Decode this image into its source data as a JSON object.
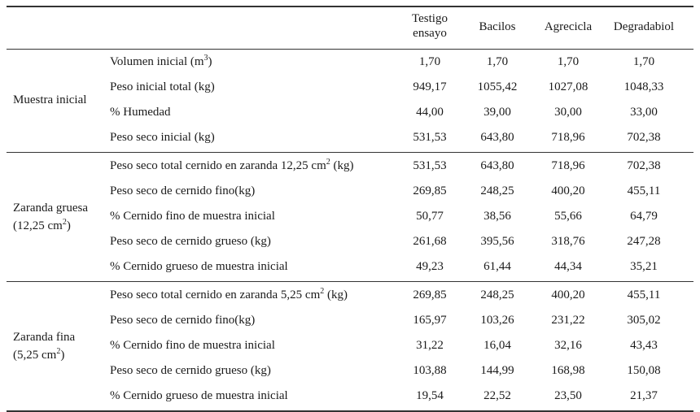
{
  "columns": [
    "Testigo",
    "ensayo",
    "Bacilos",
    "Agrecicla",
    "Degradabiol"
  ],
  "groups": [
    {
      "name_lines": [
        "Muestra inicial"
      ],
      "rows": [
        {
          "label": "Volumen inicial (m",
          "sup": "3",
          "tail": ")",
          "values": [
            "1,70",
            "1,70",
            "1,70",
            "1,70"
          ]
        },
        {
          "label": "Peso inicial total (kg)",
          "sup": "",
          "tail": "",
          "values": [
            "949,17",
            "1055,42",
            "1027,08",
            "1048,33"
          ]
        },
        {
          "label": "% Humedad",
          "sup": "",
          "tail": "",
          "values": [
            "44,00",
            "39,00",
            "30,00",
            "33,00"
          ]
        },
        {
          "label": "Peso seco inicial (kg)",
          "sup": "",
          "tail": "",
          "values": [
            "531,53",
            "643,80",
            "718,96",
            "702,38"
          ]
        }
      ]
    },
    {
      "name_lines": [
        "Zaranda gruesa",
        "(12,25 cm",
        "2",
        ")"
      ],
      "rows": [
        {
          "label": "Peso seco total cernido en zaranda 12,25 cm",
          "sup": "2",
          "tail": " (kg)",
          "values": [
            "531,53",
            "643,80",
            "718,96",
            "702,38"
          ]
        },
        {
          "label": "Peso seco de cernido fino(kg)",
          "sup": "",
          "tail": "",
          "values": [
            "269,85",
            "248,25",
            "400,20",
            "455,11"
          ]
        },
        {
          "label": "% Cernido fino de muestra inicial",
          "sup": "",
          "tail": "",
          "values": [
            "50,77",
            "38,56",
            "55,66",
            "64,79"
          ]
        },
        {
          "label": "Peso seco de cernido grueso (kg)",
          "sup": "",
          "tail": "",
          "values": [
            "261,68",
            "395,56",
            "318,76",
            "247,28"
          ]
        },
        {
          "label": "% Cernido grueso de muestra inicial",
          "sup": "",
          "tail": "",
          "values": [
            "49,23",
            "61,44",
            "44,34",
            "35,21"
          ]
        }
      ]
    },
    {
      "name_lines": [
        "Zaranda fina",
        "(5,25 cm",
        "2",
        ")"
      ],
      "rows": [
        {
          "label": "Peso seco total cernido en zaranda 5,25 cm",
          "sup": "2",
          "tail": " (kg)",
          "values": [
            "269,85",
            "248,25",
            "400,20",
            "455,11"
          ]
        },
        {
          "label": "Peso seco de cernido fino(kg)",
          "sup": "",
          "tail": "",
          "values": [
            "165,97",
            "103,26",
            "231,22",
            "305,02"
          ]
        },
        {
          "label": "% Cernido fino de muestra inicial",
          "sup": "",
          "tail": "",
          "values": [
            "31,22",
            "16,04",
            "32,16",
            "43,43"
          ]
        },
        {
          "label": "Peso seco de cernido grueso (kg)",
          "sup": "",
          "tail": "",
          "values": [
            "103,88",
            "144,99",
            "168,98",
            "150,08"
          ]
        },
        {
          "label": "% Cernido grueso de muestra inicial",
          "sup": "",
          "tail": "",
          "values": [
            "19,54",
            "22,52",
            "23,50",
            "21,37"
          ]
        }
      ]
    }
  ]
}
